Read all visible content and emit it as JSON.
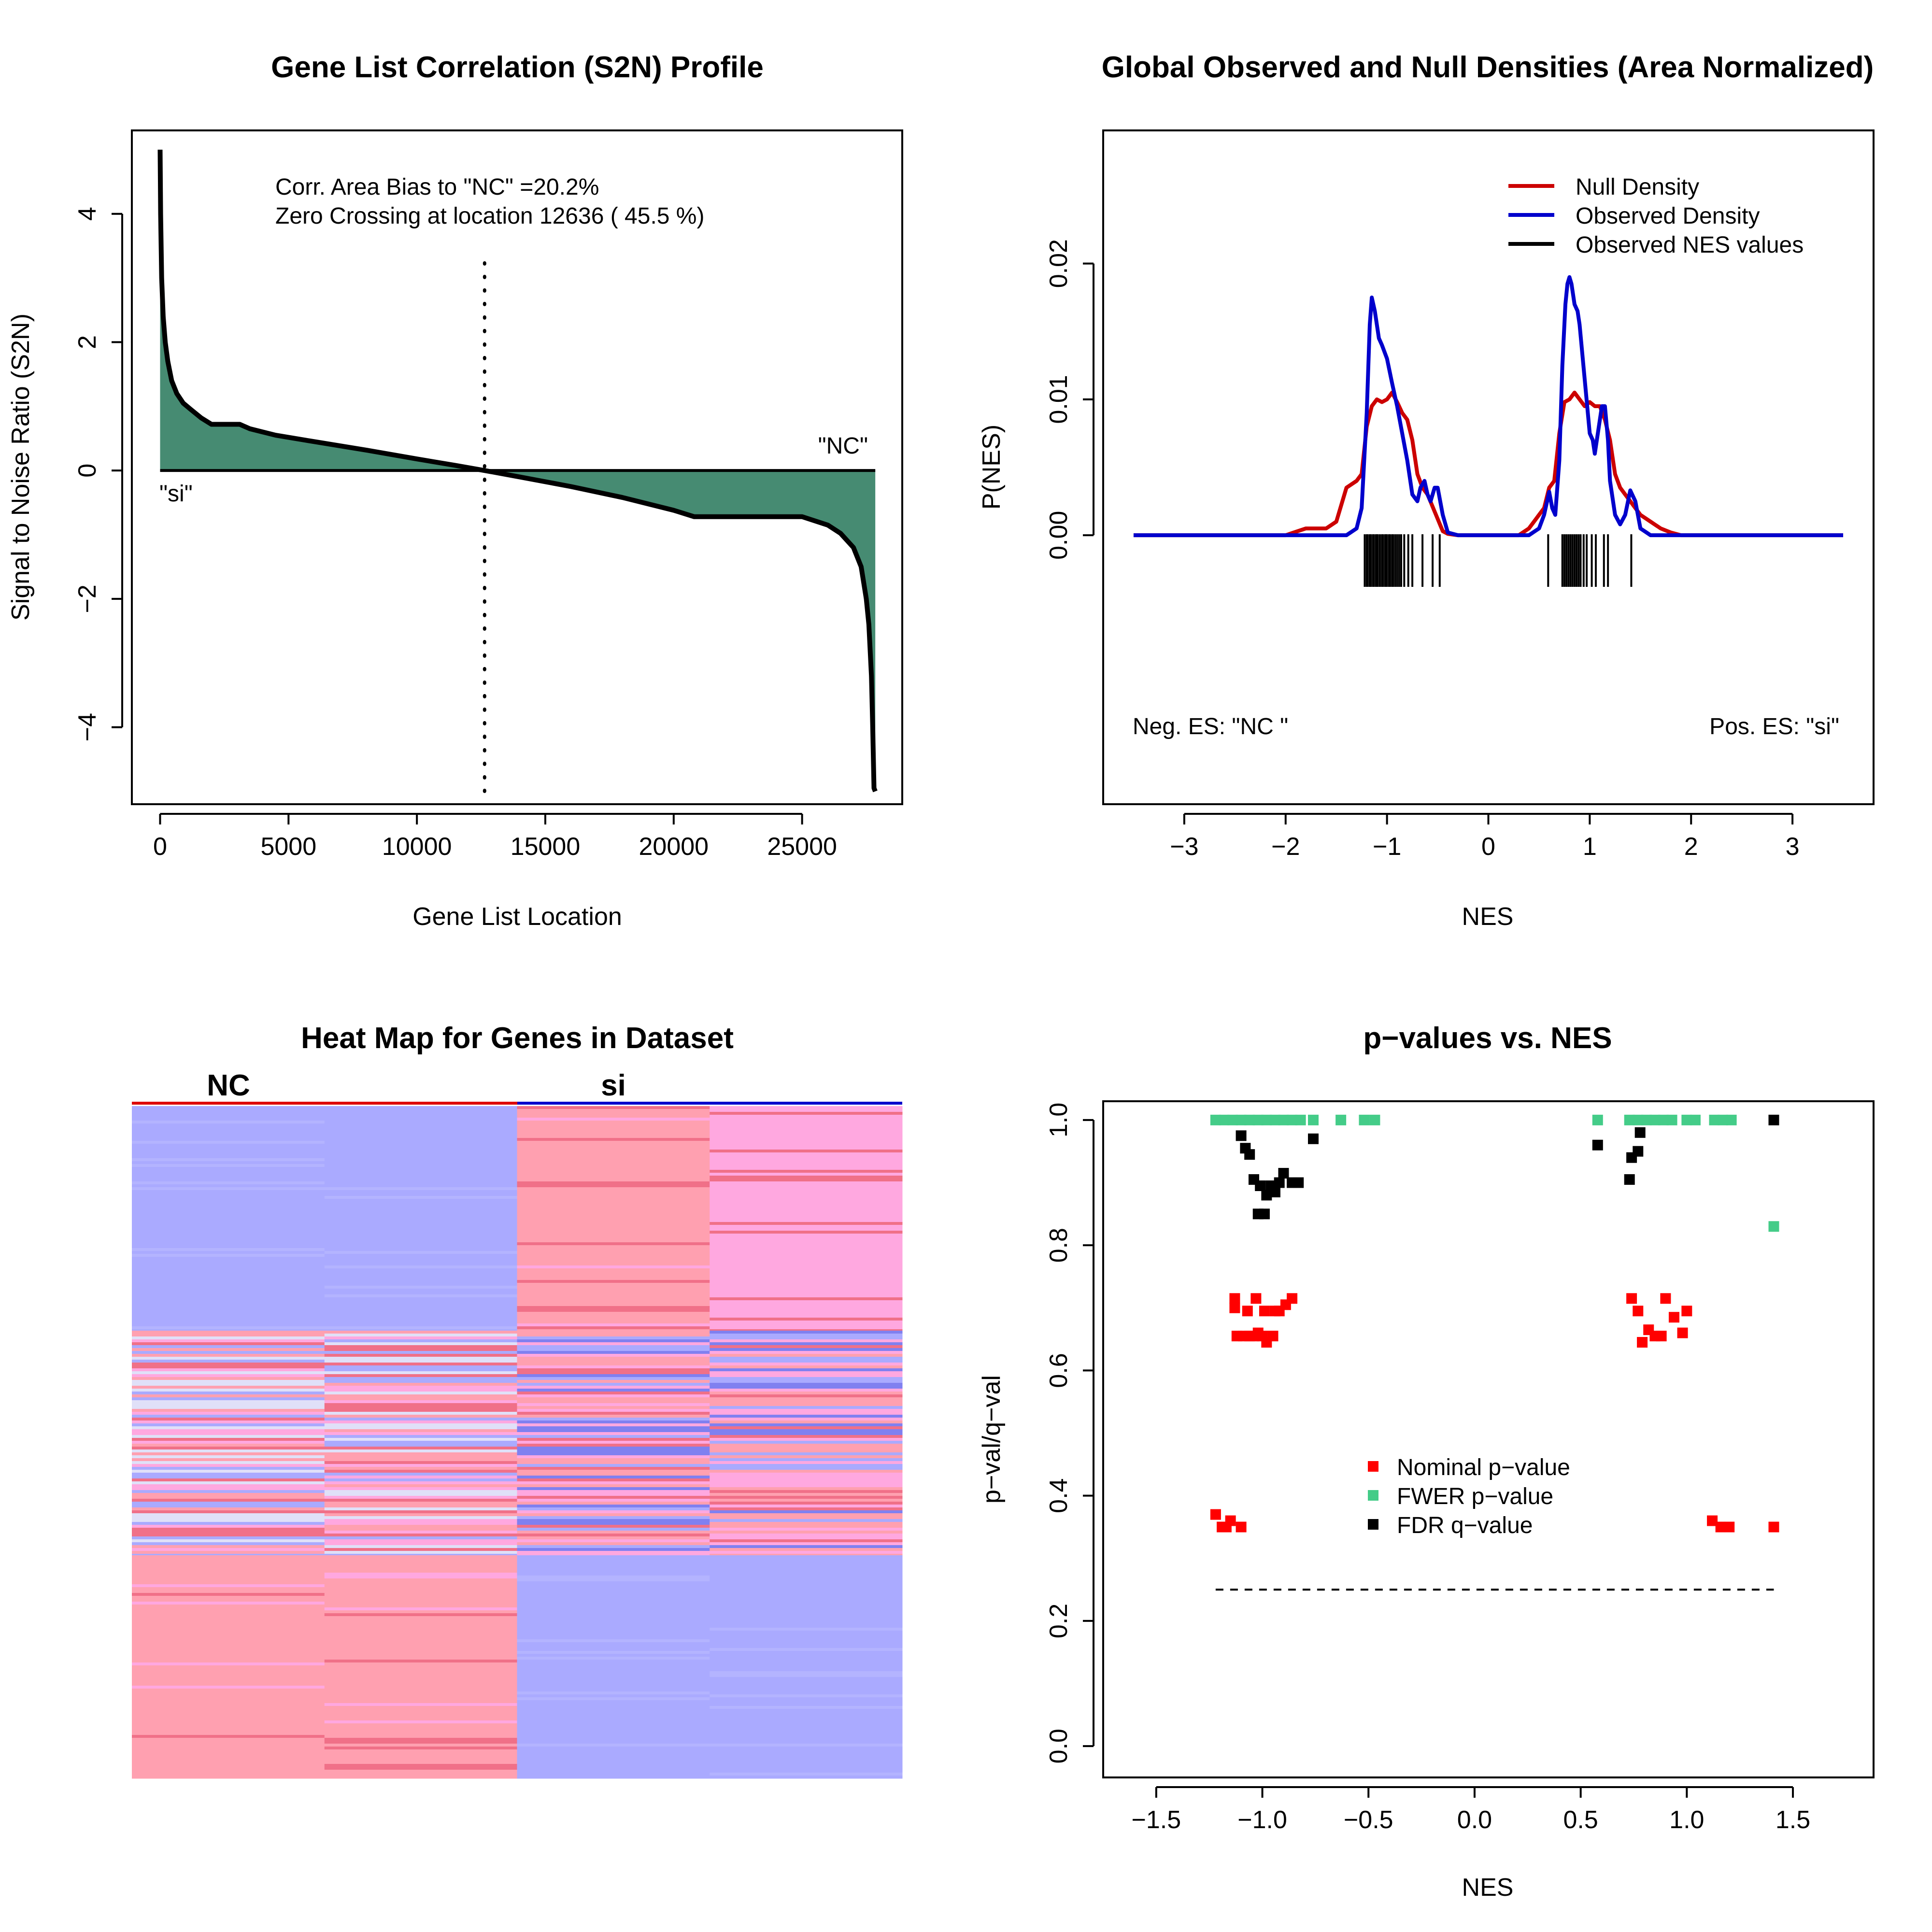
{
  "chart_data": [
    {
      "type": "area",
      "title": "Gene List Correlation (S2N) Profile",
      "xlabel": "Gene List Location",
      "ylabel": "Signal to Noise Ratio (S2N)",
      "xlim": [
        -1100,
        28900
      ],
      "ylim": [
        -5.2,
        5.3
      ],
      "xticks": [
        0,
        5000,
        10000,
        15000,
        20000,
        25000
      ],
      "xtick_labels": [
        "0",
        "5000",
        "10000",
        "15000",
        "20000",
        "25000"
      ],
      "yticks": [
        -4,
        -2,
        0,
        2,
        4
      ],
      "ytick_labels": [
        "−4",
        "−2",
        "0",
        "2",
        "4"
      ],
      "x": [
        0,
        20,
        60,
        120,
        200,
        300,
        450,
        650,
        900,
        1200,
        1600,
        2000,
        2500,
        3100,
        3500,
        4500,
        6000,
        8000,
        10000,
        11500,
        12636,
        14000,
        16000,
        18000,
        20000,
        20800,
        23000,
        25000,
        26000,
        26500,
        27000,
        27300,
        27500,
        27600,
        27700,
        27750,
        27800,
        27850
      ],
      "values": [
        5.0,
        4.0,
        3.0,
        2.4,
        2.0,
        1.7,
        1.4,
        1.2,
        1.05,
        0.95,
        0.82,
        0.72,
        0.72,
        0.72,
        0.65,
        0.55,
        0.45,
        0.32,
        0.18,
        0.08,
        0.0,
        -0.1,
        -0.25,
        -0.42,
        -0.62,
        -0.72,
        -0.72,
        -0.72,
        -0.85,
        -0.98,
        -1.2,
        -1.5,
        -2.0,
        -2.4,
        -3.2,
        -4.0,
        -4.95,
        -5.0
      ],
      "fill_color": "#468b72",
      "zero_crossing": 12636,
      "annotations": {
        "bias": "Corr. Area Bias to \"NC\" =20.2%",
        "crossing": "Zero Crossing at location  12636  ( 45.5  %)",
        "pos_label": "\"NC\"",
        "neg_label": "\"si\""
      }
    },
    {
      "type": "line",
      "title": "Global Observed and Null Densities (Area Normalized)",
      "xlabel": "NES",
      "ylabel": "P(NES)",
      "xlim": [
        -3.8,
        3.8
      ],
      "ylim": [
        -0.0198,
        0.0298
      ],
      "xticks": [
        -3,
        -2,
        -1,
        0,
        1,
        2,
        3
      ],
      "xtick_labels": [
        "−3",
        "−2",
        "−1",
        "0",
        "1",
        "2",
        "3"
      ],
      "yticks": [
        0.0,
        0.01,
        0.02
      ],
      "ytick_labels": [
        "0.00",
        "0.01",
        "0.02"
      ],
      "series": [
        {
          "name": "Null Density",
          "color": "#cc0000",
          "x": [
            -3.5,
            -2.0,
            -1.8,
            -1.6,
            -1.5,
            -1.4,
            -1.3,
            -1.25,
            -1.2,
            -1.15,
            -1.1,
            -1.05,
            -1.0,
            -0.95,
            -0.9,
            -0.85,
            -0.8,
            -0.75,
            -0.7,
            -0.65,
            -0.6,
            -0.5,
            -0.45,
            -0.4,
            -0.3,
            0.3,
            0.4,
            0.5,
            0.55,
            0.6,
            0.65,
            0.7,
            0.75,
            0.8,
            0.85,
            0.9,
            0.95,
            1.0,
            1.05,
            1.1,
            1.15,
            1.2,
            1.25,
            1.3,
            1.4,
            1.5,
            1.6,
            1.7,
            1.8,
            1.9,
            3.5
          ],
          "values": [
            0,
            0,
            0.0005,
            0.0005,
            0.001,
            0.0035,
            0.004,
            0.0045,
            0.008,
            0.0095,
            0.01,
            0.0098,
            0.01,
            0.0105,
            0.0098,
            0.009,
            0.0085,
            0.007,
            0.0045,
            0.0035,
            0.003,
            0.0012,
            0.0003,
            0.0001,
            0,
            0,
            0.0005,
            0.0015,
            0.002,
            0.0035,
            0.004,
            0.0075,
            0.0098,
            0.01,
            0.0105,
            0.01,
            0.0095,
            0.0098,
            0.0095,
            0.0095,
            0.0085,
            0.007,
            0.0045,
            0.0035,
            0.0025,
            0.0015,
            0.001,
            0.0005,
            0.0002,
            0,
            0
          ]
        },
        {
          "name": "Observed Density",
          "color": "#0000cc",
          "x": [
            -3.5,
            -1.4,
            -1.3,
            -1.25,
            -1.2,
            -1.17,
            -1.15,
            -1.12,
            -1.08,
            -1.05,
            -1.0,
            -0.95,
            -0.9,
            -0.85,
            -0.8,
            -0.75,
            -0.7,
            -0.67,
            -0.63,
            -0.6,
            -0.57,
            -0.53,
            -0.5,
            -0.45,
            -0.4,
            -0.3,
            0.4,
            0.5,
            0.55,
            0.6,
            0.63,
            0.66,
            0.7,
            0.73,
            0.76,
            0.78,
            0.8,
            0.82,
            0.85,
            0.88,
            0.9,
            0.95,
            1.0,
            1.03,
            1.05,
            1.08,
            1.12,
            1.15,
            1.18,
            1.2,
            1.25,
            1.3,
            1.35,
            1.4,
            1.45,
            1.5,
            1.6,
            3.5
          ],
          "values": [
            0,
            0,
            0.0005,
            0.002,
            0.009,
            0.0155,
            0.0175,
            0.0165,
            0.0145,
            0.014,
            0.013,
            0.0112,
            0.0095,
            0.0075,
            0.0055,
            0.003,
            0.0025,
            0.0035,
            0.004,
            0.003,
            0.0025,
            0.0035,
            0.0035,
            0.0015,
            0.0002,
            0,
            0,
            0.0005,
            0.0015,
            0.0032,
            0.002,
            0.0015,
            0.0055,
            0.0125,
            0.017,
            0.0185,
            0.019,
            0.0185,
            0.017,
            0.0165,
            0.0155,
            0.0115,
            0.0075,
            0.007,
            0.006,
            0.0075,
            0.0095,
            0.0095,
            0.007,
            0.004,
            0.0015,
            0.0008,
            0.0015,
            0.0033,
            0.0025,
            0.0005,
            0,
            0
          ]
        },
        {
          "name": "Observed NES values",
          "color": "#000000",
          "rug": [
            -1.22,
            -1.2,
            -1.19,
            -1.17,
            -1.16,
            -1.14,
            -1.13,
            -1.11,
            -1.1,
            -1.09,
            -1.07,
            -1.05,
            -1.04,
            -1.02,
            -1.01,
            -1.0,
            -0.98,
            -0.97,
            -0.95,
            -0.94,
            -0.92,
            -0.9,
            -0.88,
            -0.86,
            -0.83,
            -0.79,
            -0.75,
            -0.65,
            -0.55,
            -0.48,
            0.59,
            0.73,
            0.75,
            0.77,
            0.79,
            0.81,
            0.83,
            0.85,
            0.87,
            0.89,
            0.91,
            0.94,
            0.97,
            1.02,
            1.06,
            1.14,
            1.18,
            1.41
          ]
        }
      ],
      "legend_position": "top-right",
      "annotations": {
        "neg": "Neg. ES: \"NC \"",
        "pos": "Pos. ES: \"si\""
      }
    },
    {
      "type": "heatmap",
      "title": "Heat Map for Genes in Dataset",
      "groups": [
        {
          "label": "NC",
          "color": "#dd0000"
        },
        {
          "label": "si",
          "color": "#0000cc"
        }
      ],
      "colors": {
        "blue": "#aaaaff",
        "pink": "#ffa0b0",
        "magenta_pink": "#ffa8e0",
        "light": "#e0e0f8",
        "red": "#f07088",
        "dark_blue": "#8080f0"
      }
    },
    {
      "type": "scatter",
      "title": "p−values vs. NES",
      "xlabel": "NES",
      "ylabel": "p−val/q−val",
      "xlim": [
        -1.75,
        1.88
      ],
      "ylim": [
        -0.05,
        1.03
      ],
      "xticks": [
        -1.5,
        -1.0,
        -0.5,
        0.0,
        0.5,
        1.0,
        1.5
      ],
      "xtick_labels": [
        "−1.5",
        "−1.0",
        "−0.5",
        "0.0",
        "0.5",
        "1.0",
        "1.5"
      ],
      "yticks": [
        0.0,
        0.2,
        0.4,
        0.6,
        0.8,
        1.0
      ],
      "ytick_labels": [
        "0.0",
        "0.2",
        "0.4",
        "0.6",
        "0.8",
        "1.0"
      ],
      "threshold": {
        "value": 0.25,
        "x_range": [
          -1.22,
          1.41
        ]
      },
      "series": [
        {
          "name": "Nominal p−value",
          "color": "#ff0000",
          "points": [
            [
              -1.22,
              0.37
            ],
            [
              -1.19,
              0.35
            ],
            [
              -1.17,
              0.35
            ],
            [
              -1.15,
              0.36
            ],
            [
              -1.1,
              0.35
            ],
            [
              -1.13,
              0.715
            ],
            [
              -1.13,
              0.7
            ],
            [
              -1.12,
              0.655
            ],
            [
              -1.09,
              0.655
            ],
            [
              -1.07,
              0.695
            ],
            [
              -1.06,
              0.655
            ],
            [
              -1.04,
              0.655
            ],
            [
              -1.03,
              0.715
            ],
            [
              -1.02,
              0.66
            ],
            [
              -1.0,
              0.655
            ],
            [
              -0.99,
              0.695
            ],
            [
              -0.98,
              0.645
            ],
            [
              -0.95,
              0.655
            ],
            [
              -0.94,
              0.695
            ],
            [
              -0.92,
              0.695
            ],
            [
              -0.89,
              0.705
            ],
            [
              -0.86,
              0.715
            ],
            [
              0.74,
              0.715
            ],
            [
              0.77,
              0.695
            ],
            [
              0.79,
              0.645
            ],
            [
              0.82,
              0.665
            ],
            [
              0.85,
              0.655
            ],
            [
              0.88,
              0.655
            ],
            [
              0.9,
              0.715
            ],
            [
              0.94,
              0.685
            ],
            [
              0.98,
              0.66
            ],
            [
              1.0,
              0.695
            ],
            [
              1.12,
              0.36
            ],
            [
              1.16,
              0.35
            ],
            [
              1.2,
              0.35
            ],
            [
              1.41,
              0.35
            ]
          ]
        },
        {
          "name": "FWER p−value",
          "color": "#44cc88",
          "points": [
            [
              -1.22,
              1.0
            ],
            [
              -1.18,
              1.0
            ],
            [
              -1.14,
              1.0
            ],
            [
              -1.1,
              1.0
            ],
            [
              -1.06,
              1.0
            ],
            [
              -1.02,
              1.0
            ],
            [
              -0.98,
              1.0
            ],
            [
              -0.94,
              1.0
            ],
            [
              -0.9,
              1.0
            ],
            [
              -0.86,
              1.0
            ],
            [
              -0.82,
              1.0
            ],
            [
              -0.76,
              1.0
            ],
            [
              -0.63,
              1.0
            ],
            [
              -0.52,
              1.0
            ],
            [
              -0.47,
              1.0
            ],
            [
              0.58,
              1.0
            ],
            [
              0.73,
              1.0
            ],
            [
              0.77,
              1.0
            ],
            [
              0.81,
              1.0
            ],
            [
              0.85,
              1.0
            ],
            [
              0.89,
              1.0
            ],
            [
              0.93,
              1.0
            ],
            [
              1.0,
              1.0
            ],
            [
              1.04,
              1.0
            ],
            [
              1.13,
              1.0
            ],
            [
              1.17,
              1.0
            ],
            [
              1.21,
              1.0
            ],
            [
              1.41,
              0.83
            ]
          ]
        },
        {
          "name": "FDR q−value",
          "color": "#000000",
          "points": [
            [
              -1.1,
              0.975
            ],
            [
              -1.08,
              0.955
            ],
            [
              -1.06,
              0.945
            ],
            [
              -1.04,
              0.905
            ],
            [
              -1.02,
              0.85
            ],
            [
              -1.01,
              0.895
            ],
            [
              -0.99,
              0.85
            ],
            [
              -0.98,
              0.88
            ],
            [
              -0.96,
              0.895
            ],
            [
              -0.94,
              0.885
            ],
            [
              -0.92,
              0.9
            ],
            [
              -0.9,
              0.915
            ],
            [
              -0.86,
              0.9
            ],
            [
              -0.83,
              0.9
            ],
            [
              -0.76,
              0.97
            ],
            [
              0.58,
              0.96
            ],
            [
              0.73,
              0.905
            ],
            [
              0.74,
              0.94
            ],
            [
              0.77,
              0.95
            ],
            [
              0.78,
              0.98
            ],
            [
              1.41,
              1.0
            ]
          ]
        }
      ],
      "legend_position": "center"
    }
  ]
}
